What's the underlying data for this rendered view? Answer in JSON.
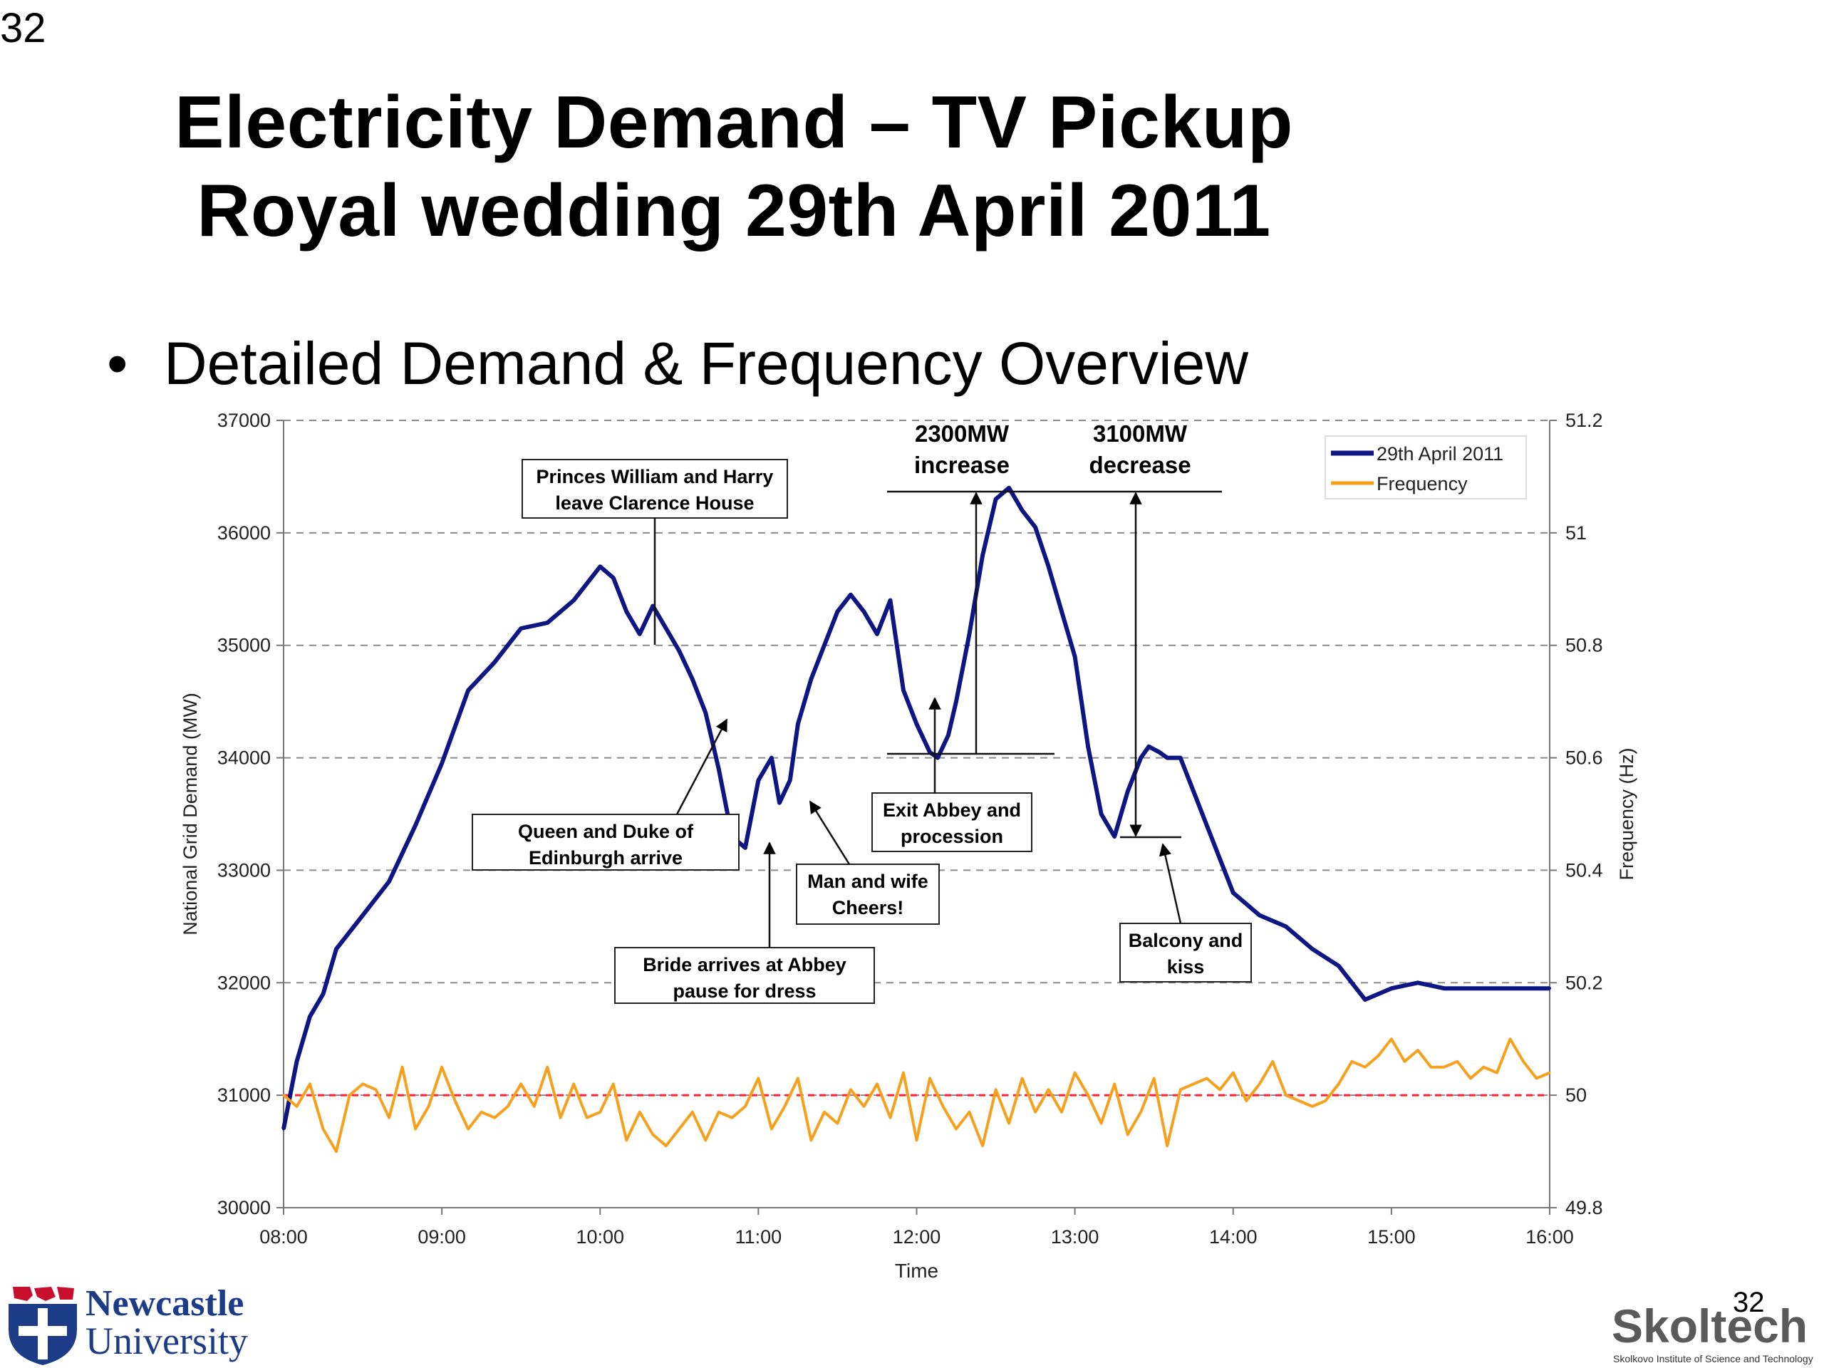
{
  "slide": {
    "corner_number": "32",
    "title_line1": "Electricity Demand – TV Pickup",
    "title_line2": "Royal wedding 29th April 2011",
    "bullet": "Detailed Demand & Frequency Overview",
    "footer_number": "32"
  },
  "logos": {
    "newcastle_line1": "Newcastle",
    "newcastle_line2": "University",
    "skoltech_name": "Skoltech",
    "skoltech_sub": "Skolkovo Institute of Science and Technology"
  },
  "colors": {
    "demand": "#0d1682",
    "frequency": "#f5a11e",
    "reference": "#ff1f2e",
    "grid": "#8a8a8a"
  },
  "chart_data": {
    "type": "line",
    "xlabel": "Time",
    "ylabel": "National Grid Demand (MW)",
    "y2label": "Frequency (Hz)",
    "x_ticks": [
      "08:00",
      "09:00",
      "10:00",
      "11:00",
      "12:00",
      "13:00",
      "14:00",
      "15:00",
      "16:00"
    ],
    "xlim_hours": [
      8,
      16
    ],
    "ylim": [
      30000,
      37000
    ],
    "y_ticks": [
      30000,
      31000,
      32000,
      33000,
      34000,
      35000,
      36000,
      37000
    ],
    "y2lim": [
      49.8,
      51.2
    ],
    "y2_ticks": [
      49.8,
      50,
      50.2,
      50.4,
      50.6,
      50.8,
      51,
      51.2
    ],
    "y2_tick_labels": [
      "49.8",
      "50",
      "50.2",
      "50.4",
      "50.6",
      "50.8",
      "51",
      "51.2"
    ],
    "grid": "horizontal dashed",
    "reference_line_hz": 50,
    "legend_position": "top-right",
    "series": [
      {
        "name": "29th April 2011",
        "axis": "left",
        "x": [
          "08:00",
          "08:05",
          "08:10",
          "08:15",
          "08:20",
          "08:30",
          "08:40",
          "08:50",
          "09:00",
          "09:10",
          "09:20",
          "09:30",
          "09:40",
          "09:50",
          "10:00",
          "10:05",
          "10:10",
          "10:15",
          "10:20",
          "10:25",
          "10:30",
          "10:35",
          "10:40",
          "10:45",
          "10:50",
          "10:55",
          "11:00",
          "11:05",
          "11:08",
          "11:12",
          "11:15",
          "11:20",
          "11:25",
          "11:30",
          "11:35",
          "11:40",
          "11:45",
          "11:50",
          "11:55",
          "12:00",
          "12:05",
          "12:08",
          "12:12",
          "12:15",
          "12:20",
          "12:25",
          "12:30",
          "12:35",
          "12:40",
          "12:45",
          "12:50",
          "12:55",
          "13:00",
          "13:05",
          "13:10",
          "13:15",
          "13:20",
          "13:25",
          "13:28",
          "13:32",
          "13:35",
          "13:40",
          "13:45",
          "13:50",
          "13:55",
          "14:00",
          "14:10",
          "14:20",
          "14:30",
          "14:40",
          "14:50",
          "15:00",
          "15:10",
          "15:20",
          "15:30",
          "15:40",
          "15:45",
          "15:50",
          "16:00"
        ],
        "values": [
          30700,
          31300,
          31700,
          31900,
          32300,
          32600,
          32900,
          33400,
          33950,
          34600,
          34850,
          35150,
          35200,
          35400,
          35700,
          35600,
          35300,
          35100,
          35350,
          35150,
          34950,
          34700,
          34400,
          33900,
          33300,
          33200,
          33800,
          34000,
          33600,
          33800,
          34300,
          34700,
          35000,
          35300,
          35450,
          35300,
          35100,
          35400,
          34600,
          34300,
          34050,
          34000,
          34200,
          34500,
          35100,
          35800,
          36300,
          36400,
          36200,
          36050,
          35700,
          35300,
          34900,
          34100,
          33500,
          33300,
          33700,
          34000,
          34100,
          34050,
          34000,
          34000,
          33700,
          33400,
          33100,
          32800,
          32600,
          32500,
          32300,
          32150,
          31850,
          31950,
          32000,
          31950,
          31950,
          31950,
          31950,
          31950,
          31950
        ],
        "note_values_source": "estimated"
      },
      {
        "name": "Frequency",
        "axis": "right",
        "x": [
          "08:00",
          "08:05",
          "08:10",
          "08:15",
          "08:20",
          "08:25",
          "08:30",
          "08:35",
          "08:40",
          "08:45",
          "08:50",
          "08:55",
          "09:00",
          "09:05",
          "09:10",
          "09:15",
          "09:20",
          "09:25",
          "09:30",
          "09:35",
          "09:40",
          "09:45",
          "09:50",
          "09:55",
          "10:00",
          "10:05",
          "10:10",
          "10:15",
          "10:20",
          "10:25",
          "10:30",
          "10:35",
          "10:40",
          "10:45",
          "10:50",
          "10:55",
          "11:00",
          "11:05",
          "11:10",
          "11:15",
          "11:20",
          "11:25",
          "11:30",
          "11:35",
          "11:40",
          "11:45",
          "11:50",
          "11:55",
          "12:00",
          "12:05",
          "12:10",
          "12:15",
          "12:20",
          "12:25",
          "12:30",
          "12:35",
          "12:40",
          "12:45",
          "12:50",
          "12:55",
          "13:00",
          "13:05",
          "13:10",
          "13:15",
          "13:20",
          "13:25",
          "13:30",
          "13:35",
          "13:40",
          "13:45",
          "13:50",
          "13:55",
          "14:00",
          "14:05",
          "14:10",
          "14:15",
          "14:20",
          "14:25",
          "14:30",
          "14:35",
          "14:40",
          "14:45",
          "14:50",
          "14:55",
          "15:00",
          "15:05",
          "15:10",
          "15:15",
          "15:20",
          "15:25",
          "15:30",
          "15:35",
          "15:40",
          "15:45",
          "15:50",
          "15:55",
          "16:00"
        ],
        "values": [
          50.0,
          49.98,
          50.02,
          49.94,
          49.9,
          50.0,
          50.02,
          50.01,
          49.96,
          50.05,
          49.94,
          49.98,
          50.05,
          49.99,
          49.94,
          49.97,
          49.96,
          49.98,
          50.02,
          49.98,
          50.05,
          49.96,
          50.02,
          49.96,
          49.97,
          50.02,
          49.92,
          49.97,
          49.93,
          49.91,
          49.94,
          49.97,
          49.92,
          49.97,
          49.96,
          49.98,
          50.03,
          49.94,
          49.98,
          50.03,
          49.92,
          49.97,
          49.95,
          50.01,
          49.98,
          50.02,
          49.96,
          50.04,
          49.92,
          50.03,
          49.98,
          49.94,
          49.97,
          49.91,
          50.01,
          49.95,
          50.03,
          49.97,
          50.01,
          49.97,
          50.04,
          50.0,
          49.95,
          50.02,
          49.93,
          49.97,
          50.03,
          49.91,
          50.01,
          50.02,
          50.03,
          50.01,
          50.04,
          49.99,
          50.02,
          50.06,
          50.0,
          49.99,
          49.98,
          49.99,
          50.02,
          50.06,
          50.05,
          50.07,
          50.1,
          50.06,
          50.08,
          50.05,
          50.05,
          50.06,
          50.03,
          50.05,
          50.04,
          50.1,
          50.06,
          50.03,
          50.04
        ],
        "note_values_source": "estimated"
      }
    ],
    "annotations": [
      {
        "id": "princes",
        "text_line1": "Princes William and Harry",
        "text_line2": "leave Clarence House"
      },
      {
        "id": "queen",
        "text_line1": "Queen and Duke of",
        "text_line2": "Edinburgh arrive"
      },
      {
        "id": "bride",
        "text_line1": "Bride arrives at Abbey",
        "text_line2": "pause for dress"
      },
      {
        "id": "cheers",
        "text_line1": "Man and wife",
        "text_line2": "Cheers!"
      },
      {
        "id": "exit",
        "text_line1": "Exit Abbey and",
        "text_line2": "procession"
      },
      {
        "id": "balcony",
        "text_line1": "Balcony and",
        "text_line2": "kiss"
      },
      {
        "id": "increase",
        "text_line1": "2300MW",
        "text_line2": "increase"
      },
      {
        "id": "decrease",
        "text_line1": "3100MW",
        "text_line2": "decrease"
      }
    ]
  }
}
